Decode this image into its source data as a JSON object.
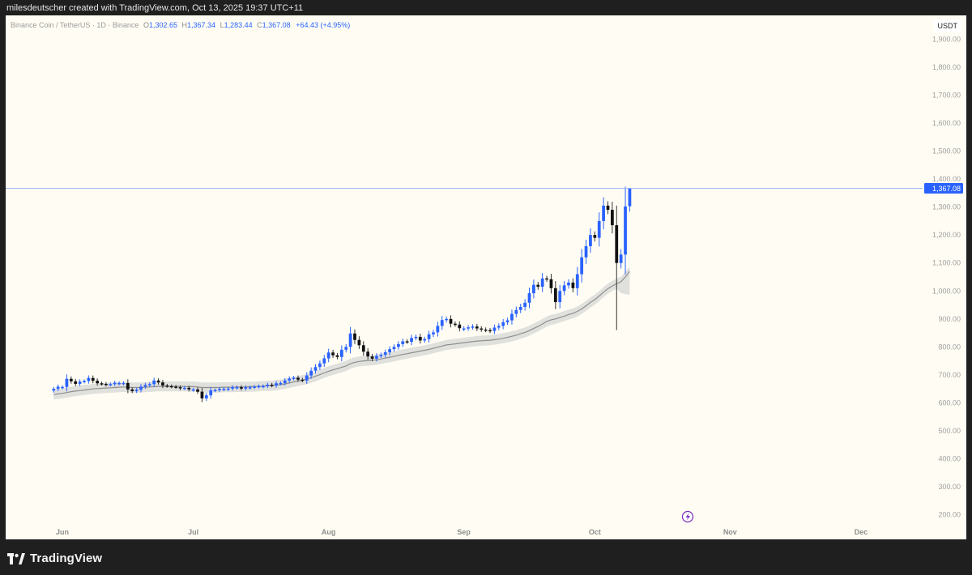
{
  "caption": "milesdeutscher created with TradingView.com, Oct 13, 2025 19:37 UTC+11",
  "legend": {
    "symbol": "Binance Coin / TetherUS · 1D · Binance",
    "o_label": "O",
    "o": "1,302.65",
    "h_label": "H",
    "h": "1,367.34",
    "l_label": "L",
    "l": "1,283.44",
    "c_label": "C",
    "c": "1,367.08",
    "change": "+64.43 (+4.95%)"
  },
  "currency": "USDT",
  "brand": "TradingView",
  "colors": {
    "up": "#2962ff",
    "down": "#111111",
    "background": "#fffdf3",
    "band": "#d6d6d6",
    "ema": "#8e8e8e",
    "last_price_line": "#9db6f5"
  },
  "icons": {
    "lightning": "lightning-icon",
    "logo": "tradingview-logo-icon"
  },
  "chart_data": {
    "type": "candlestick",
    "title": "",
    "ylim": [
      170,
      1985
    ],
    "y_ticks": [
      "200.00",
      "300.00",
      "400.00",
      "500.00",
      "600.00",
      "700.00",
      "800.00",
      "900.00",
      "1,000.00",
      "1,100.00",
      "1,200.00",
      "1,300.00",
      "1,400.00",
      "1,500.00",
      "1,600.00",
      "1,700.00",
      "1,800.00",
      "1,900.00"
    ],
    "x_labels": [
      {
        "label": "Jun",
        "day": 2
      },
      {
        "label": "Jul",
        "day": 32
      },
      {
        "label": "Aug",
        "day": 63
      },
      {
        "label": "Sep",
        "day": 94
      },
      {
        "label": "Oct",
        "day": 124
      },
      {
        "label": "Nov",
        "day": 155
      },
      {
        "label": "Dec",
        "day": 185
      }
    ],
    "x_day_range": [
      -11,
      198
    ],
    "last_price": "1,367.08",
    "last_price_value": 1367.08,
    "closes": [
      650,
      658,
      657,
      686,
      677,
      668,
      676,
      678,
      689,
      679,
      670,
      668,
      665,
      667,
      672,
      671,
      671,
      648,
      642,
      647,
      658,
      664,
      667,
      680,
      673,
      662,
      660,
      658,
      656,
      652,
      654,
      648,
      648,
      640,
      616,
      627,
      645,
      646,
      650,
      650,
      651,
      656,
      656,
      651,
      656,
      656,
      658,
      660,
      660,
      665,
      662,
      670,
      671,
      680,
      687,
      690,
      683,
      680,
      698,
      715,
      728,
      741,
      759,
      780,
      770,
      764,
      790,
      800,
      848,
      825,
      806,
      783,
      766,
      758,
      768,
      772,
      781,
      792,
      800,
      810,
      820,
      818,
      832,
      836,
      823,
      828,
      845,
      852,
      875,
      896,
      900,
      883,
      880,
      867,
      866,
      870,
      873,
      866,
      862,
      860,
      857,
      869,
      875,
      888,
      895,
      918,
      932,
      943,
      958,
      992,
      1022,
      1015,
      1045,
      1042,
      1010,
      960,
      1000,
      1020,
      1030,
      1010,
      1060,
      1120,
      1160,
      1200,
      1190,
      1250,
      1305,
      1290,
      1235,
      1100,
      1130,
      1302,
      1367
    ],
    "ema": [
      630,
      632,
      634,
      637,
      640,
      642,
      644,
      646,
      648,
      650,
      651,
      652,
      653,
      654,
      655,
      656,
      657,
      656,
      655,
      655,
      655,
      656,
      657,
      658,
      659,
      659,
      659,
      659,
      659,
      659,
      659,
      658,
      658,
      657,
      655,
      655,
      655,
      655,
      655,
      656,
      656,
      656,
      657,
      657,
      657,
      658,
      658,
      659,
      660,
      661,
      661,
      663,
      665,
      668,
      671,
      675,
      678,
      681,
      685,
      690,
      695,
      701,
      707,
      713,
      718,
      722,
      727,
      732,
      740,
      745,
      748,
      750,
      751,
      752,
      754,
      757,
      760,
      763,
      766,
      770,
      773,
      776,
      779,
      782,
      785,
      788,
      791,
      795,
      799,
      803,
      807,
      809,
      811,
      813,
      815,
      817,
      819,
      821,
      822,
      823,
      824,
      826,
      828,
      831,
      834,
      838,
      842,
      847,
      852,
      858,
      866,
      873,
      882,
      891,
      897,
      900,
      905,
      910,
      916,
      920,
      927,
      936,
      947,
      959,
      969,
      982,
      996,
      1008,
      1018,
      1026,
      1033,
      1050,
      1070
    ],
    "ema_band": 18
  }
}
